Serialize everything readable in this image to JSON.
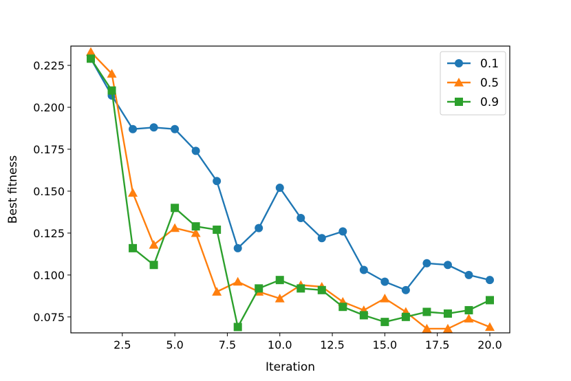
{
  "chart_data": {
    "type": "line",
    "xlabel": "Iteration",
    "ylabel": "Best fitness",
    "xlim": [
      0.05,
      20.95
    ],
    "ylim": [
      0.0655,
      0.2365
    ],
    "xticks": [
      "2.5",
      "5.0",
      "7.5",
      "10.0",
      "12.5",
      "15.0",
      "17.5",
      "20.0"
    ],
    "yticks": [
      "0.075",
      "0.100",
      "0.125",
      "0.150",
      "0.175",
      "0.200",
      "0.225"
    ],
    "legend_position": "top-right",
    "grid": false,
    "x": [
      1,
      2,
      3,
      4,
      5,
      6,
      7,
      8,
      9,
      10,
      11,
      12,
      13,
      14,
      15,
      16,
      17,
      18,
      19,
      20
    ],
    "series": [
      {
        "name": "0.1",
        "color": "#1f77b4",
        "marker": "circle",
        "values": [
          0.229,
          0.207,
          0.187,
          0.188,
          0.187,
          0.174,
          0.156,
          0.116,
          0.128,
          0.152,
          0.134,
          0.122,
          0.126,
          0.103,
          0.096,
          0.091,
          0.107,
          0.106,
          0.1,
          0.097
        ]
      },
      {
        "name": "0.5",
        "color": "#ff7f0e",
        "marker": "triangle",
        "values": [
          0.233,
          0.22,
          0.149,
          0.118,
          0.128,
          0.125,
          0.09,
          0.096,
          0.09,
          0.086,
          0.094,
          0.093,
          0.084,
          0.079,
          0.086,
          0.078,
          0.068,
          0.068,
          0.074,
          0.069
        ]
      },
      {
        "name": "0.9",
        "color": "#2ca02c",
        "marker": "square",
        "values": [
          0.229,
          0.21,
          0.116,
          0.106,
          0.14,
          0.129,
          0.127,
          0.069,
          0.092,
          0.097,
          0.092,
          0.091,
          0.081,
          0.076,
          0.072,
          0.075,
          0.078,
          0.077,
          0.079,
          0.085
        ]
      }
    ]
  }
}
